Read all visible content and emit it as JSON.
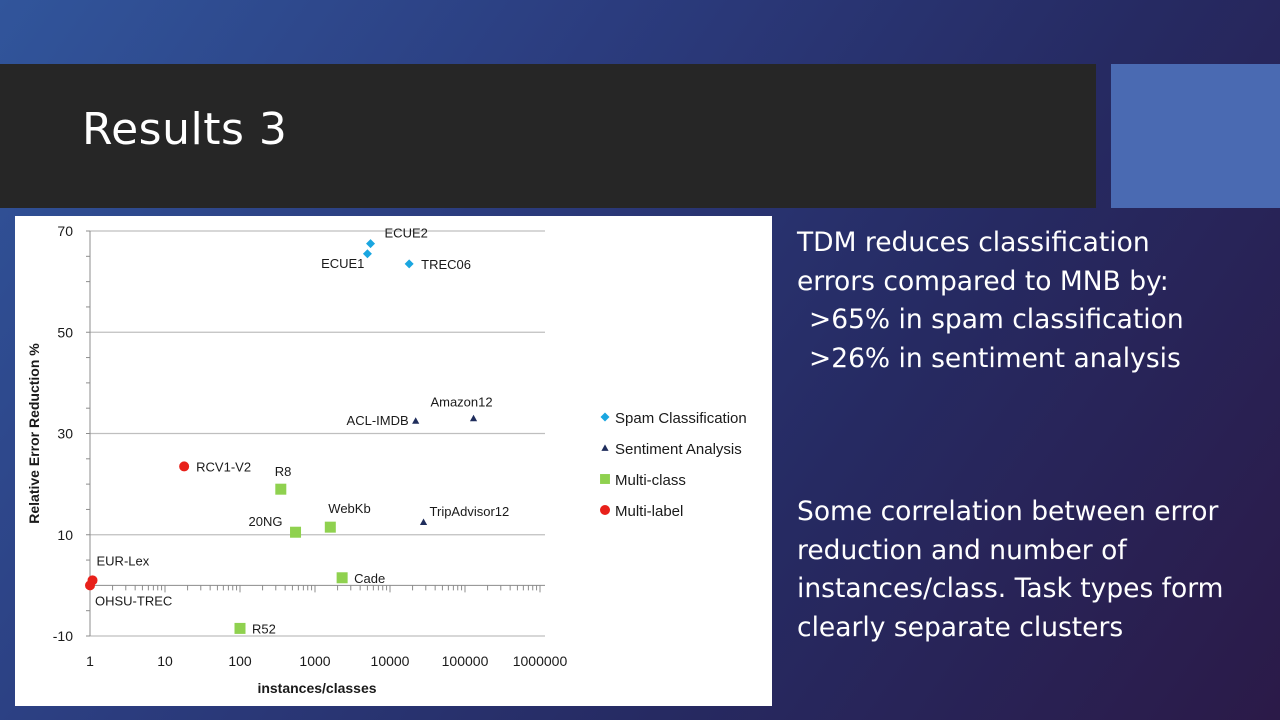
{
  "slide": {
    "title": "Results 3",
    "colors": {
      "title_bar": "#262626",
      "accent": "#4a6ab2",
      "text": "#ffffff"
    }
  },
  "text": {
    "line1": "TDM reduces classification",
    "line2": "errors compared to MNB by:",
    "line3": ">65% in spam classification",
    "line4": ">26% in sentiment analysis",
    "para2": "Some correlation between error reduction and number of instances/class. Task types form clearly separate clusters"
  },
  "chart_data": {
    "type": "scatter",
    "xlabel": "instances/classes",
    "ylabel": "Relative Error Reduction %",
    "x_scale": "log",
    "xlim": [
      1,
      1000000
    ],
    "ylim": [
      -10,
      70
    ],
    "x_ticks": [
      "1",
      "10",
      "100",
      "1000",
      "10000",
      "100000",
      "1000000"
    ],
    "y_ticks": [
      "-10",
      "10",
      "30",
      "50",
      "70"
    ],
    "gridlines": "horizontal",
    "legend_position": "right",
    "series": [
      {
        "name": "Spam Classification",
        "marker": "diamond",
        "color": "#1aa6e0",
        "points": [
          {
            "label": "ECUE1",
            "x": 5000,
            "y": 65.5
          },
          {
            "label": "ECUE2",
            "x": 5500,
            "y": 67.5
          },
          {
            "label": "TREC06",
            "x": 18000,
            "y": 63.5
          }
        ]
      },
      {
        "name": "Sentiment Analysis",
        "marker": "triangle",
        "color": "#1f2d5c",
        "points": [
          {
            "label": "ACL-IMDB",
            "x": 22000,
            "y": 32.5
          },
          {
            "label": "Amazon12",
            "x": 130000,
            "y": 33
          },
          {
            "label": "TripAdvisor12",
            "x": 28000,
            "y": 12.5
          }
        ]
      },
      {
        "name": "Multi-class",
        "marker": "square",
        "color": "#8fd14f",
        "points": [
          {
            "label": "R8",
            "x": 350,
            "y": 19
          },
          {
            "label": "20NG",
            "x": 550,
            "y": 10.5
          },
          {
            "label": "WebKb",
            "x": 1600,
            "y": 11.5
          },
          {
            "label": "Cade",
            "x": 2300,
            "y": 1.5
          },
          {
            "label": "R52",
            "x": 100,
            "y": -8.5
          }
        ]
      },
      {
        "name": "Multi-label",
        "marker": "circle",
        "color": "#e8201a",
        "points": [
          {
            "label": "RCV1-V2",
            "x": 18,
            "y": 23.5
          },
          {
            "label": "EUR-Lex",
            "x": 1.08,
            "y": 1
          },
          {
            "label": "OHSU-TREC",
            "x": 1,
            "y": 0
          }
        ]
      }
    ]
  }
}
